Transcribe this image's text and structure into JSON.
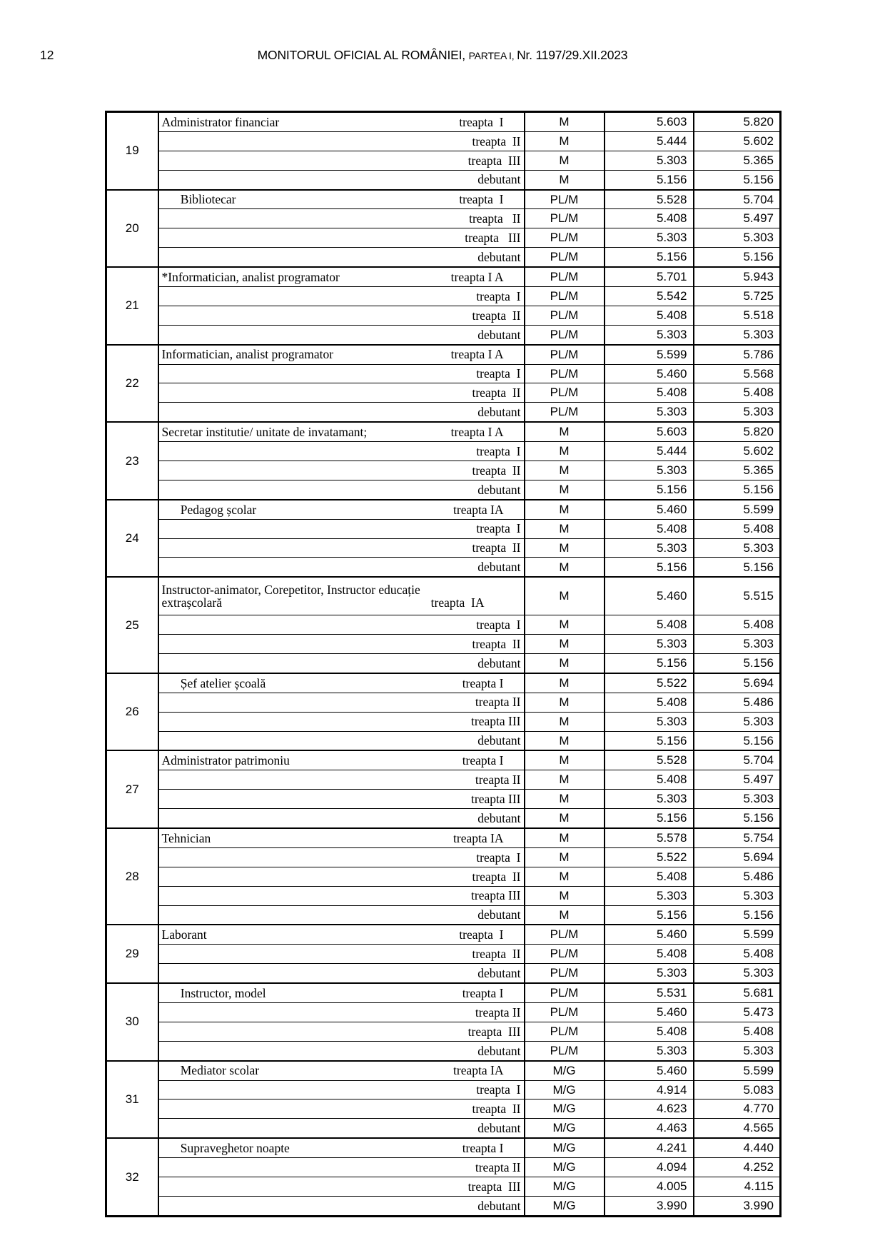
{
  "header": {
    "page_number": "12",
    "title_main": "MONITORUL OFICIAL AL ROMÂNIEI, ",
    "title_part": "PARTEA I, ",
    "title_issue": "Nr. 1197/29.XII.2023"
  },
  "table": {
    "groups": [
      {
        "no": "19",
        "rows": [
          {
            "job": "Administrator financiar",
            "treapta": "treapta  I",
            "level": "M",
            "v1": "5.603",
            "v2": "5.820"
          },
          {
            "job": "",
            "treapta": "treapta  II",
            "level": "M",
            "v1": "5.444",
            "v2": "5.602"
          },
          {
            "job": "",
            "treapta": "treapta  III",
            "level": "M",
            "v1": "5.303",
            "v2": "5.365"
          },
          {
            "job": "",
            "treapta": "debutant",
            "level": "M",
            "v1": "5.156",
            "v2": "5.156"
          }
        ]
      },
      {
        "no": "20",
        "rows": [
          {
            "job": "      Bibliotecar",
            "treapta": "treapta  I",
            "level": "PL/M",
            "v1": "5.528",
            "v2": "5.704"
          },
          {
            "job": "",
            "treapta": "treapta   II",
            "level": "PL/M",
            "v1": "5.408",
            "v2": "5.497"
          },
          {
            "job": "",
            "treapta": "treapta   III",
            "level": "PL/M",
            "v1": "5.303",
            "v2": "5.303"
          },
          {
            "job": "",
            "treapta": "debutant",
            "level": "PL/M",
            "v1": "5.156",
            "v2": "5.156"
          }
        ]
      },
      {
        "no": "21",
        "rows": [
          {
            "job": "*Informatician, analist programator",
            "treapta": "treapta I A",
            "level": "PL/M",
            "v1": "5.701",
            "v2": "5.943"
          },
          {
            "job": "",
            "treapta": "treapta  I",
            "level": "PL/M",
            "v1": "5.542",
            "v2": "5.725"
          },
          {
            "job": "",
            "treapta": "treapta  II",
            "level": "PL/M",
            "v1": "5.408",
            "v2": "5.518"
          },
          {
            "job": "",
            "treapta": "debutant",
            "level": "PL/M",
            "v1": "5.303",
            "v2": "5.303"
          }
        ]
      },
      {
        "no": "22",
        "rows": [
          {
            "job": "Informatician, analist programator",
            "treapta": "treapta I A",
            "level": "PL/M",
            "v1": "5.599",
            "v2": "5.786"
          },
          {
            "job": "",
            "treapta": "treapta  I",
            "level": "PL/M",
            "v1": "5.460",
            "v2": "5.568"
          },
          {
            "job": "",
            "treapta": "treapta  II",
            "level": "PL/M",
            "v1": "5.408",
            "v2": "5.408"
          },
          {
            "job": "",
            "treapta": "debutant",
            "level": "PL/M",
            "v1": "5.303",
            "v2": "5.303"
          }
        ]
      },
      {
        "no": "23",
        "rows": [
          {
            "job": "Secretar institutie/ unitate de invatamant;",
            "treapta": "treapta I A",
            "level": "M",
            "v1": "5.603",
            "v2": "5.820"
          },
          {
            "job": "",
            "treapta": "treapta  I",
            "level": "M",
            "v1": "5.444",
            "v2": "5.602"
          },
          {
            "job": "",
            "treapta": "treapta  II",
            "level": "M",
            "v1": "5.303",
            "v2": "5.365"
          },
          {
            "job": "",
            "treapta": "debutant",
            "level": "M",
            "v1": "5.156",
            "v2": "5.156"
          }
        ]
      },
      {
        "no": "24",
        "rows": [
          {
            "job": "      Pedagog școlar",
            "treapta": "treapta IA",
            "level": "M",
            "v1": "5.460",
            "v2": "5.599"
          },
          {
            "job": "",
            "treapta": "treapta  I",
            "level": "M",
            "v1": "5.408",
            "v2": "5.408"
          },
          {
            "job": "",
            "treapta": "treapta  II",
            "level": "M",
            "v1": "5.303",
            "v2": "5.303"
          },
          {
            "job": "",
            "treapta": "debutant",
            "level": "M",
            "v1": "5.156",
            "v2": "5.156"
          }
        ]
      },
      {
        "no": "25",
        "rows": [
          {
            "job": "Instructor-animator, Corepetitor, Instructor educație",
            "job2": "extrașcolară",
            "treapta": "treapta  IA",
            "level": "M",
            "v1": "5.460",
            "v2": "5.515",
            "tall": true
          },
          {
            "job": "",
            "treapta": "treapta  I",
            "level": "M",
            "v1": "5.408",
            "v2": "5.408"
          },
          {
            "job": "",
            "treapta": "treapta  II",
            "level": "M",
            "v1": "5.303",
            "v2": "5.303"
          },
          {
            "job": "",
            "treapta": "debutant",
            "level": "M",
            "v1": "5.156",
            "v2": "5.156"
          }
        ]
      },
      {
        "no": "26",
        "rows": [
          {
            "job": "      Șef atelier școală",
            "treapta": "treapta I",
            "level": "M",
            "v1": "5.522",
            "v2": "5.694"
          },
          {
            "job": "",
            "treapta": "treapta II",
            "level": "M",
            "v1": "5.408",
            "v2": "5.486"
          },
          {
            "job": "",
            "treapta": "treapta III",
            "level": "M",
            "v1": "5.303",
            "v2": "5.303"
          },
          {
            "job": "",
            "treapta": "debutant",
            "level": "M",
            "v1": "5.156",
            "v2": "5.156"
          }
        ]
      },
      {
        "no": "27",
        "rows": [
          {
            "job": "Administrator patrimoniu",
            "treapta": "treapta I",
            "level": "M",
            "v1": "5.528",
            "v2": "5.704"
          },
          {
            "job": "",
            "treapta": "treapta II",
            "level": "M",
            "v1": "5.408",
            "v2": "5.497"
          },
          {
            "job": "",
            "treapta": "treapta III",
            "level": "M",
            "v1": "5.303",
            "v2": "5.303"
          },
          {
            "job": "",
            "treapta": "debutant",
            "level": "M",
            "v1": "5.156",
            "v2": "5.156"
          }
        ]
      },
      {
        "no": "28",
        "rows": [
          {
            "job": "Tehnician",
            "treapta": "treapta IA",
            "level": "M",
            "v1": "5.578",
            "v2": "5.754"
          },
          {
            "job": "",
            "treapta": "treapta  I",
            "level": "M",
            "v1": "5.522",
            "v2": "5.694"
          },
          {
            "job": "",
            "treapta": "treapta  II",
            "level": "M",
            "v1": "5.408",
            "v2": "5.486"
          },
          {
            "job": "",
            "treapta": "treapta III",
            "level": "M",
            "v1": "5.303",
            "v2": "5.303"
          },
          {
            "job": "",
            "treapta": "debutant",
            "level": "M",
            "v1": "5.156",
            "v2": "5.156"
          }
        ]
      },
      {
        "no": "29",
        "rows": [
          {
            "job": "Laborant",
            "treapta": "treapta  I",
            "level": "PL/M",
            "v1": "5.460",
            "v2": "5.599"
          },
          {
            "job": "",
            "treapta": "treapta  II",
            "level": "PL/M",
            "v1": "5.408",
            "v2": "5.408"
          },
          {
            "job": "",
            "treapta": "debutant",
            "level": "PL/M",
            "v1": "5.303",
            "v2": "5.303"
          }
        ]
      },
      {
        "no": "30",
        "rows": [
          {
            "job": "      Instructor, model",
            "treapta": "treapta I",
            "level": "PL/M",
            "v1": "5.531",
            "v2": "5.681"
          },
          {
            "job": "",
            "treapta": "treapta II",
            "level": "PL/M",
            "v1": "5.460",
            "v2": "5.473"
          },
          {
            "job": "",
            "treapta": "treapta  III",
            "level": "PL/M",
            "v1": "5.408",
            "v2": "5.408"
          },
          {
            "job": "",
            "treapta": "debutant",
            "level": "PL/M",
            "v1": "5.303",
            "v2": "5.303"
          }
        ]
      },
      {
        "no": "31",
        "rows": [
          {
            "job": "      Mediator scolar",
            "treapta": "treapta IA",
            "level": "M/G",
            "v1": "5.460",
            "v2": "5.599"
          },
          {
            "job": "",
            "treapta": "treapta  I",
            "level": "M/G",
            "v1": "4.914",
            "v2": "5.083"
          },
          {
            "job": "",
            "treapta": "treapta  II",
            "level": "M/G",
            "v1": "4.623",
            "v2": "4.770"
          },
          {
            "job": "",
            "treapta": "debutant",
            "level": "M/G",
            "v1": "4.463",
            "v2": "4.565"
          }
        ]
      },
      {
        "no": "32",
        "rows": [
          {
            "job": "      Supraveghetor noapte",
            "treapta": "treapta I",
            "level": "M/G",
            "v1": "4.241",
            "v2": "4.440"
          },
          {
            "job": "",
            "treapta": "treapta II",
            "level": "M/G",
            "v1": "4.094",
            "v2": "4.252"
          },
          {
            "job": "",
            "treapta": "treapta  III",
            "level": "M/G",
            "v1": "4.005",
            "v2": "4.115"
          },
          {
            "job": "",
            "treapta": "debutant",
            "level": "M/G",
            "v1": "3.990",
            "v2": "3.990"
          }
        ]
      }
    ]
  }
}
